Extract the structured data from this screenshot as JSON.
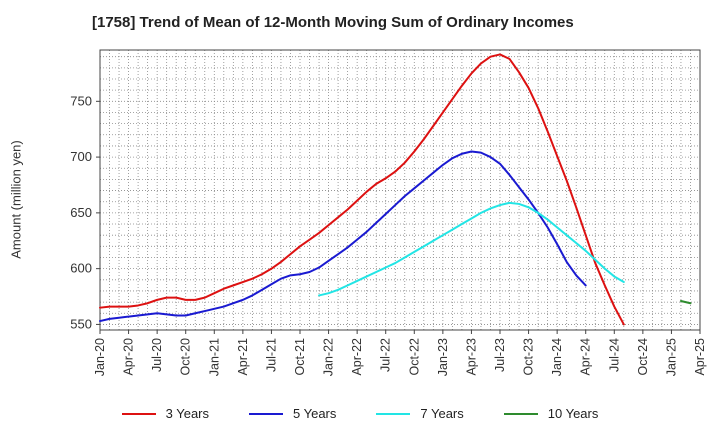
{
  "chart_data": {
    "type": "line",
    "title": "[1758]  Trend of Mean of 12-Month Moving Sum of Ordinary Incomes",
    "xlabel": "",
    "ylabel": "Amount (million yen)",
    "x_tick_labels": [
      "Jan-20",
      "Apr-20",
      "Jul-20",
      "Oct-20",
      "Jan-21",
      "Apr-21",
      "Jul-21",
      "Oct-21",
      "Jan-22",
      "Apr-22",
      "Jul-22",
      "Oct-22",
      "Jan-23",
      "Apr-23",
      "Jul-23",
      "Oct-23",
      "Jan-24",
      "Apr-24",
      "Jul-24",
      "Oct-24",
      "Jan-25",
      "Apr-25"
    ],
    "x_range": [
      0,
      63
    ],
    "ylim": [
      545,
      796
    ],
    "y_ticks": [
      550,
      600,
      650,
      700,
      750
    ],
    "grid": true,
    "legend_position": "bottom",
    "series": [
      {
        "name": "3 Years",
        "color": "#dd1111",
        "start_index": 0,
        "values": [
          565,
          566,
          566,
          566,
          567,
          569,
          572,
          574,
          574,
          572,
          572,
          574,
          578,
          582,
          585,
          588,
          591,
          595,
          600,
          606,
          613,
          620,
          626,
          632,
          639,
          646,
          653,
          661,
          669,
          676,
          681,
          687,
          695,
          705,
          716,
          728,
          740,
          752,
          764,
          775,
          784,
          790,
          792,
          788,
          776,
          762,
          744,
          723,
          701,
          679,
          655,
          630,
          605,
          585,
          566,
          550
        ]
      },
      {
        "name": "5 Years",
        "color": "#1a1ad1",
        "start_index": 0,
        "values": [
          553,
          555,
          556,
          557,
          558,
          559,
          560,
          559,
          558,
          558,
          560,
          562,
          564,
          566,
          569,
          572,
          576,
          581,
          586,
          591,
          594,
          595,
          597,
          601,
          607,
          613,
          619,
          626,
          633,
          641,
          649,
          657,
          665,
          672,
          679,
          686,
          693,
          699,
          703,
          705,
          704,
          700,
          694,
          684,
          673,
          662,
          650,
          637,
          622,
          606,
          594,
          585
        ]
      },
      {
        "name": "7 Years",
        "color": "#22e5e5",
        "start_index": 23,
        "values": [
          576,
          578,
          581,
          585,
          589,
          593,
          597,
          601,
          605,
          610,
          615,
          620,
          625,
          630,
          635,
          640,
          645,
          650,
          654,
          657,
          659,
          658,
          655,
          650,
          644,
          637,
          630,
          623,
          616,
          608,
          600,
          593,
          588
        ]
      },
      {
        "name": "10 Years",
        "color": "#2e8b2e",
        "start_index": 61,
        "values": [
          571,
          569
        ]
      }
    ]
  },
  "legend": [
    {
      "label": "3 Years",
      "color": "#dd1111"
    },
    {
      "label": "5 Years",
      "color": "#1a1ad1"
    },
    {
      "label": "7 Years",
      "color": "#22e5e5"
    },
    {
      "label": "10 Years",
      "color": "#2e8b2e"
    }
  ]
}
